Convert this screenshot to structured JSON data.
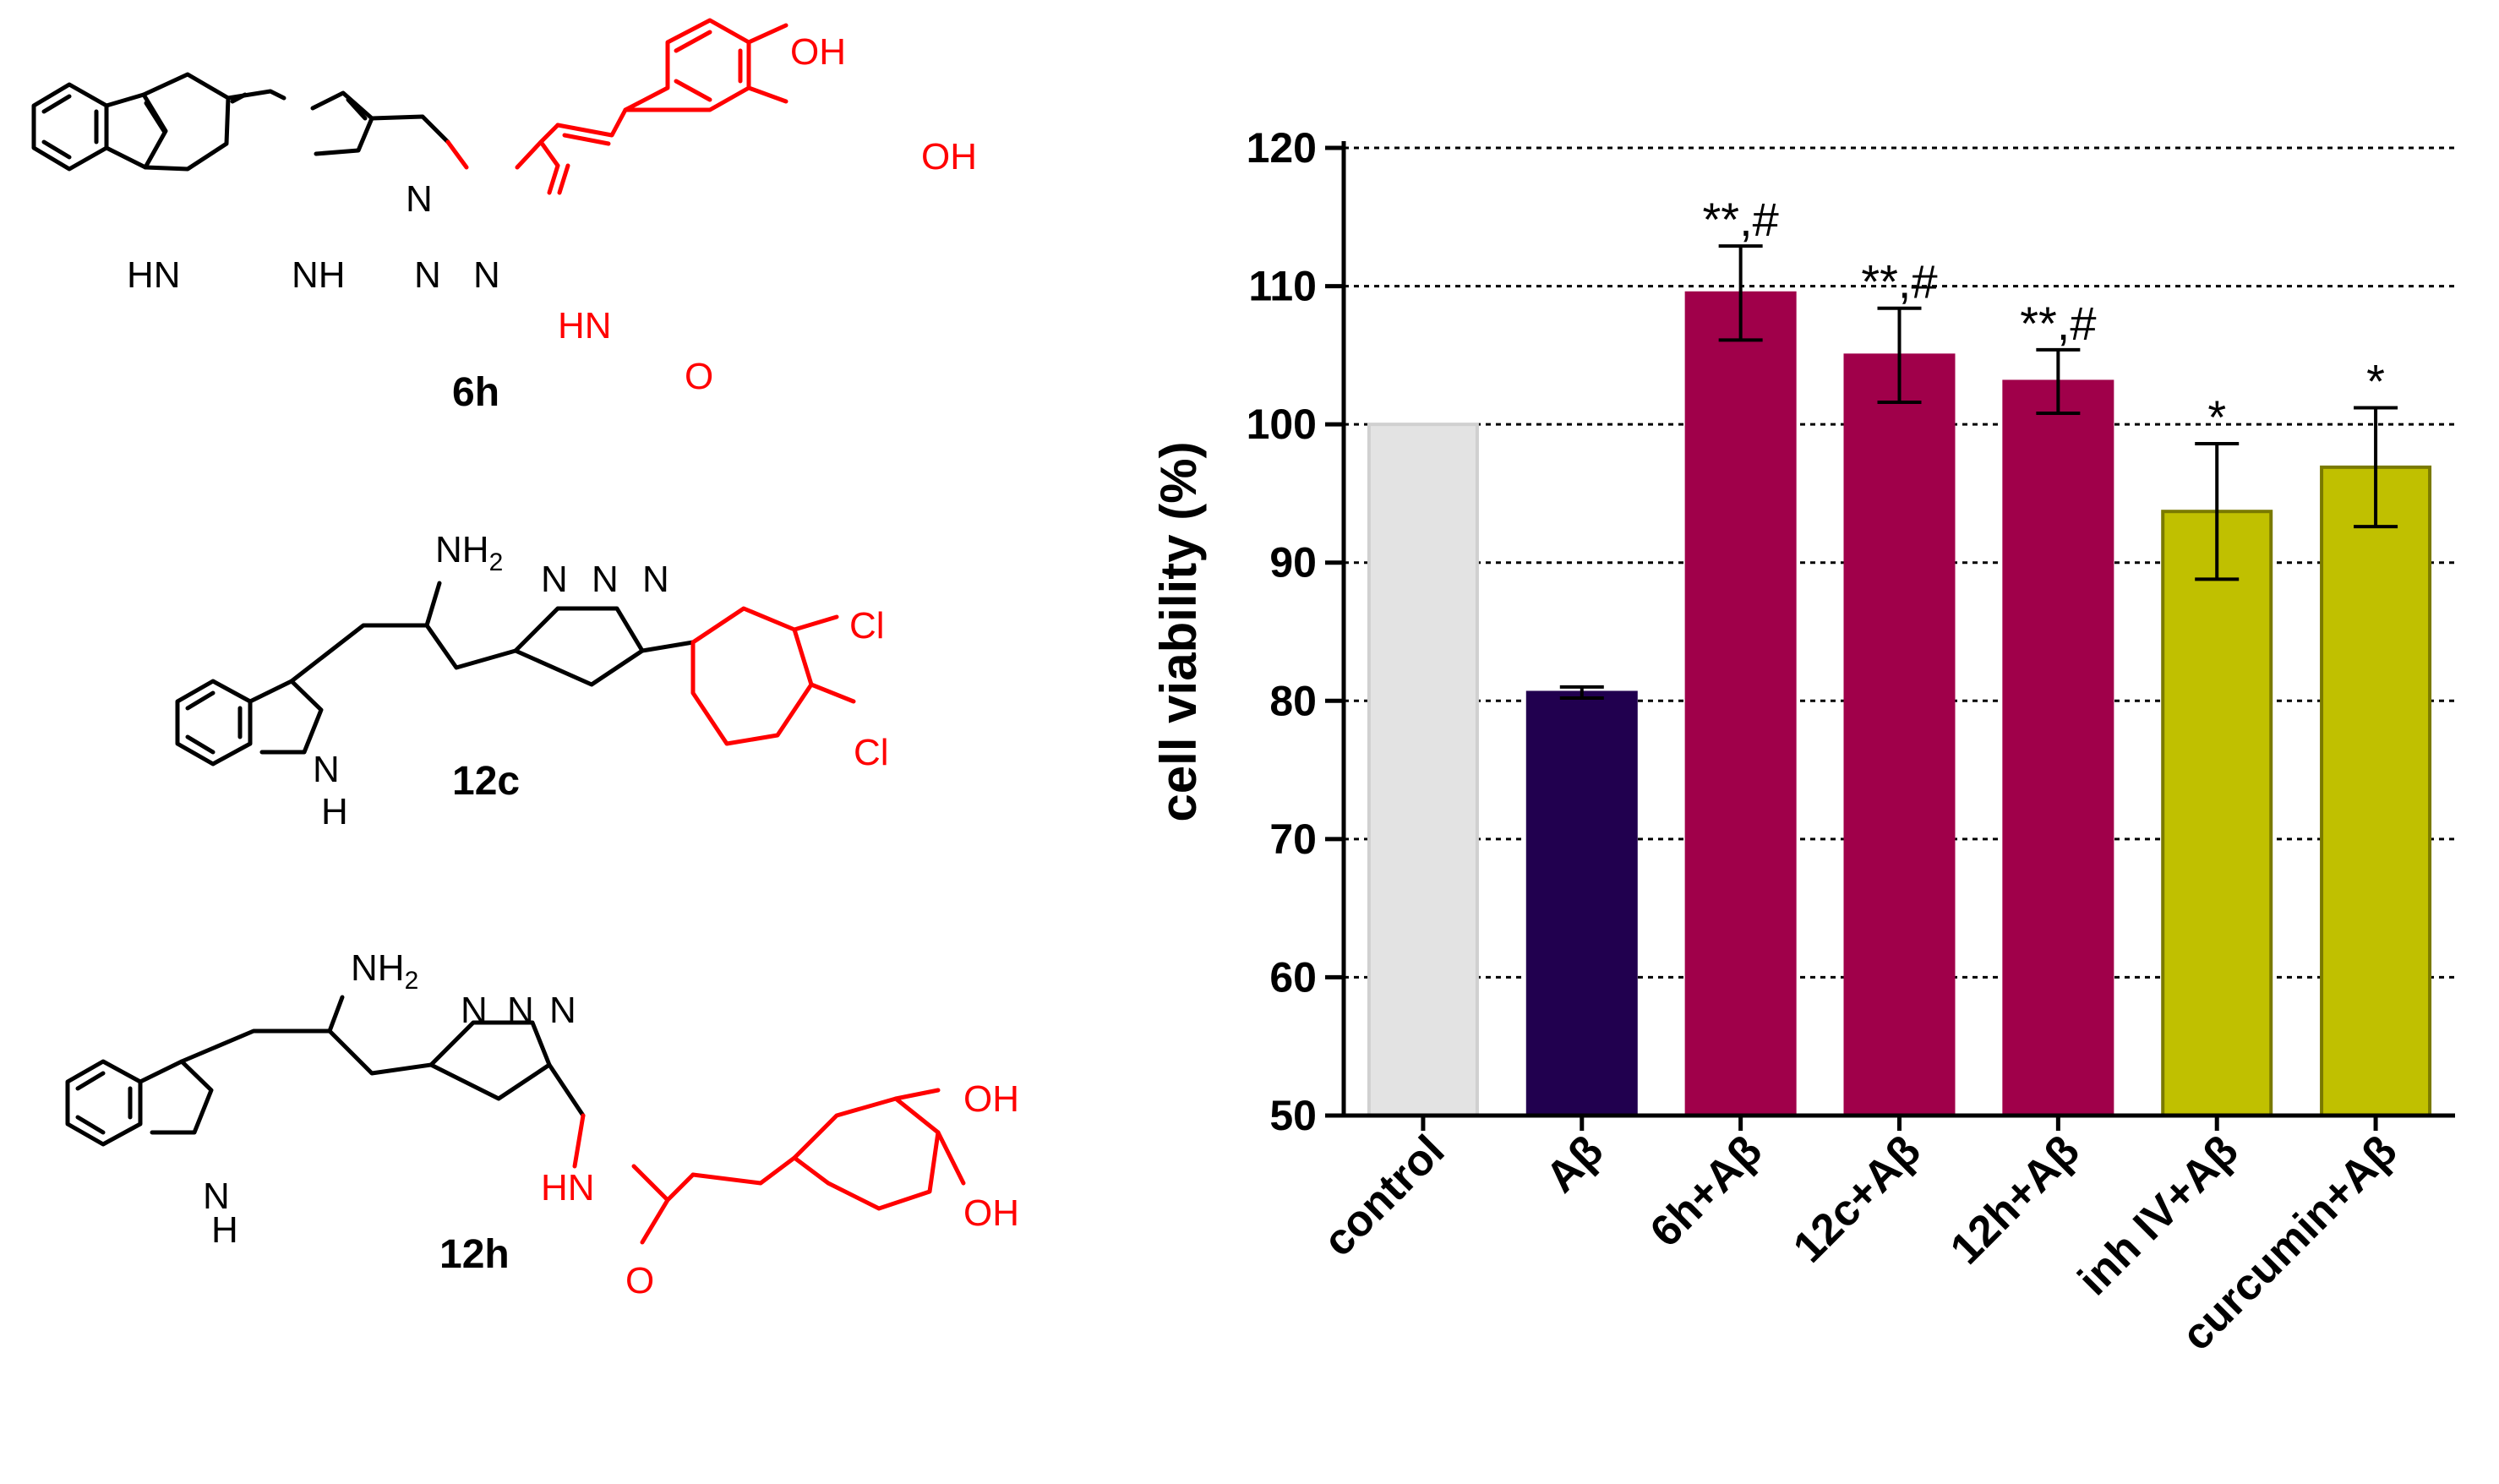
{
  "structures": [
    {
      "id": "6h",
      "label": "6h",
      "atoms": [
        "OH",
        "OH",
        "HN",
        "NH",
        "N",
        "N",
        "N",
        "HN",
        "O"
      ]
    },
    {
      "id": "12c",
      "label": "12c",
      "atoms": [
        "NH2",
        "N",
        "N",
        "N",
        "Cl",
        "Cl",
        "N",
        "H"
      ]
    },
    {
      "id": "12h",
      "label": "12h",
      "atoms": [
        "NH2",
        "N",
        "N",
        "N",
        "OH",
        "OH",
        "N",
        "H",
        "HN",
        "O"
      ]
    }
  ],
  "chart_data": {
    "type": "bar",
    "title": "",
    "ylabel": "cell viability (%)",
    "xlabel": "",
    "ylim": [
      50,
      120
    ],
    "yticks": [
      50,
      60,
      70,
      80,
      90,
      100,
      110,
      120
    ],
    "grid": "horizontal dashed",
    "categories": [
      "control",
      "Aβ",
      "6h+Aβ",
      "12c+Aβ",
      "12h+Aβ",
      "inh IV+Aβ",
      "curcumin+Aβ"
    ],
    "values": [
      100,
      80.6,
      109.5,
      105.0,
      103.1,
      93.7,
      96.9
    ],
    "errors": [
      0,
      0.4,
      3.4,
      3.4,
      2.3,
      4.9,
      4.3
    ],
    "annotations": [
      "",
      "",
      "**,#",
      "**,#",
      "**,#",
      "*",
      "*"
    ],
    "colors": [
      "#e3e3e3",
      "#21004f",
      "#a0004a",
      "#a0004a",
      "#a0004a",
      "#c0c000",
      "#c0c000"
    ],
    "borders": [
      "#d0d0d0",
      "#21004f",
      "#a0004a",
      "#a0004a",
      "#a0004a",
      "#7a7a00",
      "#7a7a00"
    ]
  }
}
